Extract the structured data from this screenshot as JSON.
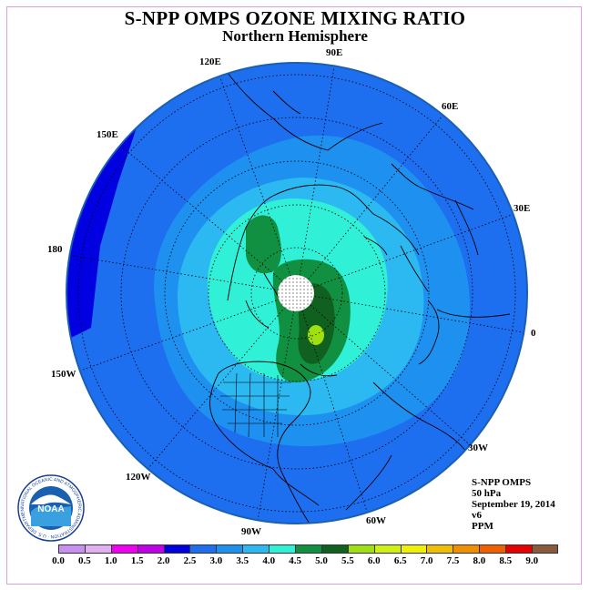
{
  "title": "S-NPP OMPS OZONE MIXING RATIO",
  "subtitle": "Northern Hemisphere",
  "longitude_labels": {
    "lon_90e": "90E",
    "lon_60e": "60E",
    "lon_30e": "30E",
    "lon_0": "0",
    "lon_30w": "30W",
    "lon_60w": "60W",
    "lon_90w": "90W",
    "lon_120w": "120W",
    "lon_150w": "150W",
    "lon_180": "180",
    "lon_150e": "150E",
    "lon_120e": "120E"
  },
  "info": {
    "instrument": "S-NPP OMPS",
    "level": "50 hPa",
    "date": "September 19, 2014",
    "version": "v6",
    "units": "PPM"
  },
  "colorbar": {
    "ticks": [
      "0.0",
      "0.5",
      "1.0",
      "1.5",
      "2.0",
      "2.5",
      "3.0",
      "3.5",
      "4.0",
      "4.5",
      "5.0",
      "5.5",
      "6.0",
      "6.5",
      "7.0",
      "7.5",
      "8.0",
      "8.5",
      "9.0"
    ],
    "colors": [
      "#c890f0",
      "#e0b0f0",
      "#f000f0",
      "#c000e8",
      "#0000e0",
      "#1e6ef0",
      "#1e90f0",
      "#2cb8f0",
      "#30f0d8",
      "#109040",
      "#106020",
      "#a0e010",
      "#d0f010",
      "#f0f000",
      "#f0c000",
      "#f09000",
      "#f06000",
      "#e80000",
      "#8b5a3c"
    ]
  },
  "logo": {
    "text": "NOAA",
    "ring_text": "NATIONAL OCEANIC AND ATMOSPHERIC ADMINISTRATION · U.S. DEPARTMENT OF COMMERCE"
  },
  "map_colors": {
    "background_band": "#1e6ef0",
    "outer_blue": "#0000e0",
    "light_blue_1": "#1e90f0",
    "light_blue_2": "#2cb8f0",
    "cyan": "#30f0d8",
    "dark_green": "#109040",
    "darker_green": "#106020",
    "yellow_green": "#a0e010",
    "pole_hole": "#ffffff"
  }
}
